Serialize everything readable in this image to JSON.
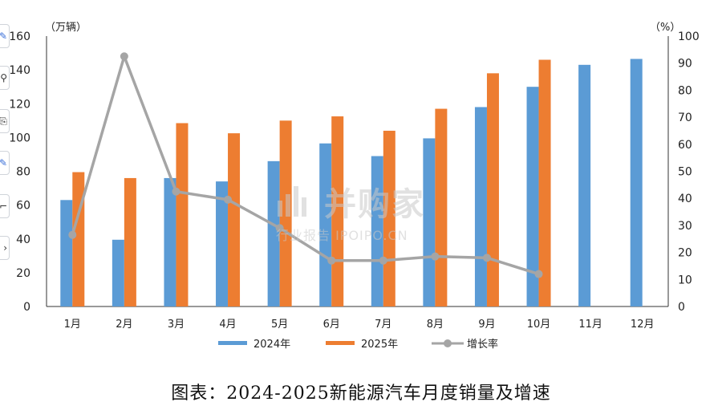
{
  "chart_data": {
    "type": "bar+line",
    "title": "图表：2024-2025新能源汽车月度销量及增速",
    "categories": [
      "1月",
      "2月",
      "3月",
      "4月",
      "5月",
      "6月",
      "7月",
      "8月",
      "9月",
      "10月",
      "11月",
      "12月"
    ],
    "series": [
      {
        "name": "2024年",
        "type": "bar",
        "axis": "left",
        "color": "#5b9bd5",
        "values": [
          63,
          39.5,
          76,
          74,
          86,
          96.5,
          89,
          99.5,
          118,
          130,
          143,
          146.5
        ]
      },
      {
        "name": "2025年",
        "type": "bar",
        "axis": "left",
        "color": "#ed7d31",
        "values": [
          79.5,
          76,
          108.5,
          102.5,
          110,
          112.5,
          104,
          117,
          138,
          146,
          null,
          null
        ]
      },
      {
        "name": "增长率",
        "type": "line",
        "axis": "right",
        "color": "#a5a5a5",
        "values": [
          26.5,
          92.5,
          42.5,
          39.5,
          29,
          17,
          17,
          18.5,
          18,
          12,
          null,
          null
        ]
      }
    ],
    "y_left": {
      "unit": "（万辆）",
      "min": 0,
      "max": 160,
      "ticks": [
        "0",
        "20",
        "40",
        "60",
        "80",
        "100",
        "120",
        "140",
        "160"
      ]
    },
    "y_right": {
      "unit": "（%）",
      "min": 0,
      "max": 100,
      "ticks": [
        "0",
        "10",
        "20",
        "30",
        "40",
        "50",
        "60",
        "70",
        "80",
        "90",
        "100"
      ]
    },
    "legend_position": "bottom",
    "grid": false
  },
  "caption": "图表：2024-2025新能源汽车月度销量及增速",
  "watermark": {
    "main": "并购家",
    "sub": "行业报告 IPOIPO.CN"
  },
  "toolbar": {
    "icons": [
      "edit-icon",
      "search-icon",
      "share-icon",
      "pen-icon",
      "crop-icon",
      "more-icon"
    ]
  }
}
